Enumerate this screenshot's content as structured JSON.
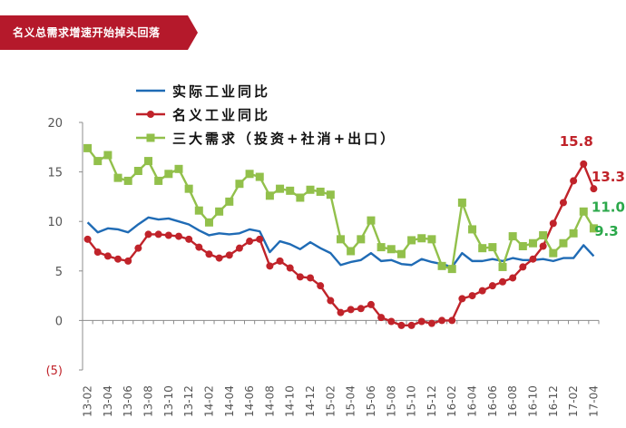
{
  "header": {
    "title": "名义总需求增速开始掉头回落",
    "color": "#B5192B"
  },
  "chart_data": {
    "type": "line",
    "title": "",
    "xlabel": "",
    "ylabel": "",
    "ylim": [
      -5,
      20
    ],
    "yticks": [
      {
        "value": 20,
        "label": "20"
      },
      {
        "value": 15,
        "label": "15"
      },
      {
        "value": 10,
        "label": "10"
      },
      {
        "value": 5,
        "label": "5"
      },
      {
        "value": 0,
        "label": "0"
      },
      {
        "value": -5,
        "label": "(5)"
      }
    ],
    "grid": false,
    "legend_position": "top-left",
    "x": [
      "13-02",
      "13-03",
      "13-04",
      "13-05",
      "13-06",
      "13-07",
      "13-08",
      "13-09",
      "13-10",
      "13-11",
      "13-12",
      "14-01",
      "14-02",
      "14-03",
      "14-04",
      "14-05",
      "14-06",
      "14-07",
      "14-08",
      "14-09",
      "14-10",
      "14-11",
      "14-12",
      "15-01",
      "15-02",
      "15-03",
      "15-04",
      "15-05",
      "15-06",
      "15-07",
      "15-08",
      "15-09",
      "15-10",
      "15-11",
      "15-12",
      "16-01",
      "16-02",
      "16-03",
      "16-04",
      "16-05",
      "16-06",
      "16-07",
      "16-08",
      "16-09",
      "16-10",
      "16-11",
      "16-12",
      "17-01",
      "17-02",
      "17-03",
      "17-04"
    ],
    "x_tick_labels": [
      "13-02",
      "13-04",
      "13-06",
      "13-08",
      "13-10",
      "13-12",
      "14-02",
      "14-04",
      "14-06",
      "14-08",
      "14-10",
      "14-12",
      "15-02",
      "15-04",
      "15-06",
      "15-08",
      "15-10",
      "15-12",
      "16-02",
      "16-04",
      "16-06",
      "16-08",
      "16-10",
      "16-12",
      "17-02",
      "17-04"
    ],
    "series": [
      {
        "name": "实际工业同比",
        "color": "#1F6BB5",
        "marker": "none",
        "values": [
          9.9,
          8.9,
          9.3,
          9.2,
          8.9,
          9.7,
          10.4,
          10.2,
          10.3,
          10.0,
          9.7,
          9.1,
          8.6,
          8.8,
          8.7,
          8.8,
          9.2,
          9.0,
          6.9,
          8.0,
          7.7,
          7.2,
          7.9,
          7.3,
          6.8,
          5.6,
          5.9,
          6.1,
          6.8,
          6.0,
          6.1,
          5.7,
          5.6,
          6.2,
          5.9,
          5.7,
          5.4,
          6.8,
          6.0,
          6.0,
          6.2,
          6.0,
          6.3,
          6.1,
          6.1,
          6.2,
          6.0,
          6.3,
          6.3,
          7.6,
          6.5
        ]
      },
      {
        "name": "名义工业同比",
        "color": "#C0232A",
        "marker": "circle",
        "values": [
          8.2,
          6.9,
          6.5,
          6.2,
          6.0,
          7.3,
          8.7,
          8.7,
          8.6,
          8.5,
          8.2,
          7.4,
          6.7,
          6.3,
          6.6,
          7.3,
          8.0,
          8.2,
          5.5,
          6.0,
          5.3,
          4.4,
          4.3,
          3.5,
          2.0,
          0.8,
          1.1,
          1.2,
          1.6,
          0.3,
          -0.1,
          -0.5,
          -0.5,
          -0.1,
          -0.3,
          0.0,
          0.0,
          2.2,
          2.5,
          3.0,
          3.5,
          3.9,
          4.3,
          5.4,
          6.2,
          7.5,
          9.8,
          11.9,
          14.1,
          15.8,
          13.3
        ]
      },
      {
        "name": "三大需求（投资+社消+出口）",
        "color": "#92C04B",
        "marker": "square",
        "values": [
          17.4,
          16.1,
          16.7,
          14.4,
          14.1,
          15.1,
          16.1,
          14.1,
          14.8,
          15.3,
          13.3,
          11.1,
          9.9,
          11.0,
          12.0,
          13.8,
          14.8,
          14.5,
          12.6,
          13.3,
          13.1,
          12.4,
          13.2,
          13.0,
          12.7,
          8.2,
          7.0,
          8.2,
          10.1,
          7.4,
          7.2,
          6.7,
          8.1,
          8.3,
          8.2,
          5.5,
          5.2,
          11.9,
          9.2,
          7.3,
          7.4,
          5.4,
          8.5,
          7.5,
          7.8,
          8.6,
          6.8,
          7.8,
          8.8,
          11.0,
          9.3
        ]
      }
    ],
    "annotations": [
      {
        "text": "15.8",
        "color": "#C0232A"
      },
      {
        "text": "13.3",
        "color": "#C0232A"
      },
      {
        "text": "11.0",
        "color": "#2BA84A"
      },
      {
        "text": "9.3",
        "color": "#2BA84A"
      }
    ],
    "axis_color": "#8C8C8C",
    "tick_label_colors": {
      "negative": "#C0232A",
      "default": "#555555"
    }
  }
}
